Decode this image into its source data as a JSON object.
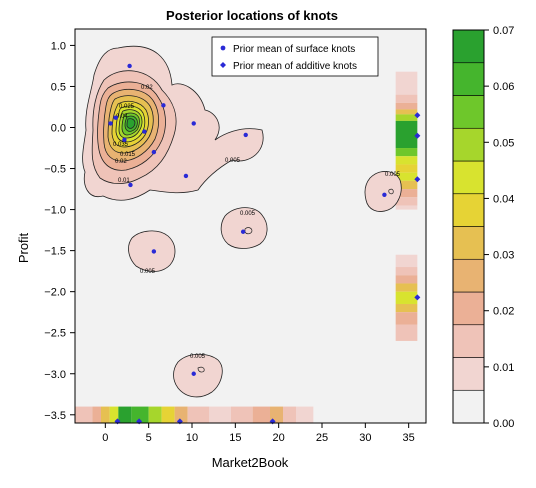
{
  "chart_data": {
    "type": "contour",
    "title": "Posterior locations of knots",
    "xlabel": "Market2Book",
    "ylabel": "Profit",
    "xlim": [
      -3.5,
      37
    ],
    "ylim": [
      -3.6,
      1.2
    ],
    "xticks": [
      0,
      5,
      10,
      15,
      20,
      25,
      30,
      35
    ],
    "yticks": [
      -3.5,
      -3.0,
      -2.5,
      -2.0,
      -1.5,
      -1.0,
      -0.5,
      0.0,
      0.5,
      1.0
    ],
    "xtick_labels": [
      "0",
      "5",
      "10",
      "15",
      "20",
      "25",
      "30",
      "35"
    ],
    "ytick_labels": [
      "−3.5",
      "−3.0",
      "−2.5",
      "−2.0",
      "−1.5",
      "−1.0",
      "−0.5",
      "0.0",
      "0.5",
      "1.0"
    ],
    "legend": {
      "placement": "top-right",
      "entries": [
        {
          "label": "Prior mean of surface knots",
          "marker": "circle",
          "color": "#2a2ad6"
        },
        {
          "label": "Prior mean of additive knots",
          "marker": "diamond",
          "color": "#2a2ad6"
        }
      ]
    },
    "colorbar": {
      "ticks": [
        0.0,
        0.01,
        0.02,
        0.03,
        0.04,
        0.05,
        0.06,
        0.07
      ],
      "tick_labels": [
        "0.00",
        "0.01",
        "0.02",
        "0.03",
        "0.04",
        "0.05",
        "0.06",
        "0.07"
      ],
      "colors": [
        "#f2f2f2",
        "#f1d5d1",
        "#efc3b8",
        "#ebb096",
        "#e8b372",
        "#e6c052",
        "#e6d335",
        "#d8e32f",
        "#a6d62c",
        "#6ec72b",
        "#45b52d",
        "#2aa12f"
      ]
    },
    "surface_knots": [
      [
        2.8,
        0.75
      ],
      [
        1.2,
        0.12
      ],
      [
        0.6,
        0.05
      ],
      [
        2.2,
        -0.15
      ],
      [
        6.7,
        0.27
      ],
      [
        4.5,
        -0.05
      ],
      [
        10.2,
        0.05
      ],
      [
        5.6,
        -0.3
      ],
      [
        9.3,
        -0.59
      ],
      [
        2.9,
        -0.7
      ],
      [
        16.2,
        -0.09
      ],
      [
        32.2,
        -0.82
      ],
      [
        15.9,
        -1.27
      ],
      [
        5.6,
        -1.51
      ],
      [
        10.2,
        -3.0
      ]
    ],
    "additive_knots_x": [
      1.4,
      3.9,
      8.6,
      19.3
    ],
    "additive_knots_y": [
      0.15,
      -0.1,
      -0.63,
      -2.07
    ],
    "contour_labels": [
      "0.02",
      "0.005",
      "0.015",
      "0.01",
      "0.025",
      "0.04",
      "0.035",
      "0.045",
      "0.005",
      "0.005",
      "0.005",
      "0.005",
      "0.005"
    ],
    "marginal_x": [
      {
        "from": -3.5,
        "to": -1.5,
        "v": 0.012
      },
      {
        "from": -1.5,
        "to": -0.5,
        "v": 0.022
      },
      {
        "from": -0.5,
        "to": 0.5,
        "v": 0.03
      },
      {
        "from": 0.5,
        "to": 1.5,
        "v": 0.045
      },
      {
        "from": 1.5,
        "to": 3.0,
        "v": 0.065
      },
      {
        "from": 3.0,
        "to": 5.0,
        "v": 0.06
      },
      {
        "from": 5.0,
        "to": 6.5,
        "v": 0.05
      },
      {
        "from": 6.5,
        "to": 8.0,
        "v": 0.035
      },
      {
        "from": 8.0,
        "to": 9.5,
        "v": 0.025
      },
      {
        "from": 9.5,
        "to": 12.0,
        "v": 0.015
      },
      {
        "from": 12.0,
        "to": 14.5,
        "v": 0.011
      },
      {
        "from": 14.5,
        "to": 17.0,
        "v": 0.013
      },
      {
        "from": 17.0,
        "to": 19.0,
        "v": 0.021
      },
      {
        "from": 19.0,
        "to": 20.5,
        "v": 0.025
      },
      {
        "from": 20.5,
        "to": 22.0,
        "v": 0.016
      },
      {
        "from": 22.0,
        "to": 24.0,
        "v": 0.008
      }
    ],
    "marginal_y": [
      {
        "from": 0.68,
        "to": 0.4,
        "v": 0.008
      },
      {
        "from": 0.4,
        "to": 0.3,
        "v": 0.012
      },
      {
        "from": 0.3,
        "to": 0.22,
        "v": 0.022
      },
      {
        "from": 0.22,
        "to": 0.16,
        "v": 0.032
      },
      {
        "from": 0.16,
        "to": 0.08,
        "v": 0.052
      },
      {
        "from": 0.08,
        "to": -0.25,
        "v": 0.068
      },
      {
        "from": -0.25,
        "to": -0.35,
        "v": 0.055
      },
      {
        "from": -0.35,
        "to": -0.45,
        "v": 0.045
      },
      {
        "from": -0.45,
        "to": -0.55,
        "v": 0.035
      },
      {
        "from": -0.55,
        "to": -0.65,
        "v": 0.045
      },
      {
        "from": -0.65,
        "to": -0.75,
        "v": 0.03
      },
      {
        "from": -0.75,
        "to": -0.85,
        "v": 0.022
      },
      {
        "from": -0.85,
        "to": -0.95,
        "v": 0.015
      },
      {
        "from": -0.95,
        "to": -1.0,
        "v": 0.008
      },
      {
        "from": -1.55,
        "to": -1.7,
        "v": 0.008
      },
      {
        "from": -1.7,
        "to": -1.8,
        "v": 0.012
      },
      {
        "from": -1.8,
        "to": -1.9,
        "v": 0.022
      },
      {
        "from": -1.9,
        "to": -2.0,
        "v": 0.032
      },
      {
        "from": -2.0,
        "to": -2.15,
        "v": 0.042
      },
      {
        "from": -2.15,
        "to": -2.25,
        "v": 0.032
      },
      {
        "from": -2.25,
        "to": -2.4,
        "v": 0.022
      },
      {
        "from": -2.4,
        "to": -2.6,
        "v": 0.012
      }
    ]
  }
}
